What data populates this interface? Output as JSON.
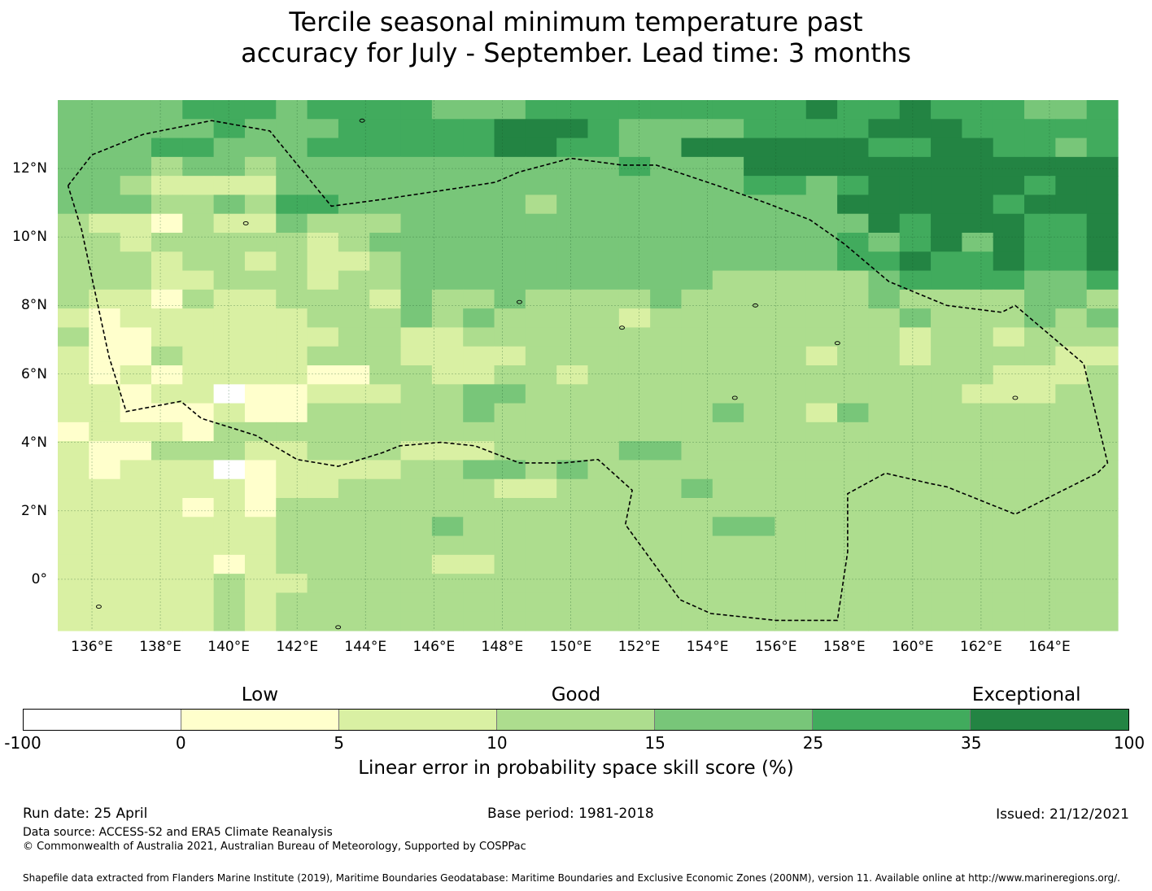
{
  "title_line1": "Tercile seasonal minimum temperature past",
  "title_line2": "accuracy for July - September. Lead time: 3 months",
  "map": {
    "lon_min": 135.0,
    "lon_max": 166.0,
    "lat_min": -1.5,
    "lat_max": 14.0,
    "cell_degrees": 0.833,
    "x_ticks": [
      "136°E",
      "138°E",
      "140°E",
      "142°E",
      "144°E",
      "146°E",
      "148°E",
      "150°E",
      "152°E",
      "154°E",
      "156°E",
      "158°E",
      "160°E",
      "162°E",
      "164°E"
    ],
    "x_tick_values": [
      136,
      138,
      140,
      142,
      144,
      146,
      148,
      150,
      152,
      154,
      156,
      158,
      160,
      162,
      164
    ],
    "y_ticks": [
      "12°N",
      "10°N",
      "8°N",
      "6°N",
      "4°N",
      "2°N",
      "0°"
    ],
    "y_tick_values": [
      12,
      10,
      8,
      6,
      4,
      2,
      0
    ],
    "grid": true,
    "grid_rows_north_to_south": [
      "4444555455554445555555556556555445",
      "4444454445555566654444555566655555",
      "4445544455555566554466666655665545",
      "4443443444444444445444666666666666",
      "4432222444444444444444554566666566",
      "4443343554444443444444444666665666",
      "3221322433344444444444444465666556",
      "3323333323444444444444444545646556",
      "3332332322344444444444444556556556",
      "3332233323344444444443333345555445",
      "3221322333243343333433333343333443",
      "2122222233343433332333333334333434",
      "3112222223322333333333333332332333",
      "2113222233322223333333332332333322",
      "2121222211332233233333333333332223",
      "2212201122233443333333333333322233",
      "2211121133333433333334332433333333",
      "1222133333333333333333333333333333",
      "2113332233322233334433333333333333",
      "2122201222233443433333333333333333",
      "2222221223333322333343333333333333",
      "2222121333333333333333333333333333",
      "2222222333334333333334433333333333",
      "2222222333333333333333333333333333",
      "2222212333332233333333333333333333",
      "2222232233333333333333333333333333",
      "2222232333333333333333333333333333",
      "2222232333333333333333333333333333"
    ],
    "island_markers": [
      {
        "lon": 136.2,
        "lat": -0.8
      },
      {
        "lon": 140.5,
        "lat": 10.4
      },
      {
        "lon": 143.2,
        "lat": -1.4
      },
      {
        "lon": 148.5,
        "lat": 8.1
      },
      {
        "lon": 151.5,
        "lat": 7.35
      },
      {
        "lon": 154.8,
        "lat": 5.3
      },
      {
        "lon": 157.8,
        "lat": 6.9
      },
      {
        "lon": 163.0,
        "lat": 5.3
      },
      {
        "lon": 143.9,
        "lat": 13.4
      },
      {
        "lon": 155.4,
        "lat": 8.0
      }
    ],
    "eez_boundary": [
      [
        135.3,
        11.5
      ],
      [
        136.0,
        12.4
      ],
      [
        137.5,
        13.0
      ],
      [
        139.5,
        13.4
      ],
      [
        141.2,
        13.1
      ],
      [
        143.0,
        10.9
      ],
      [
        144.5,
        11.1
      ],
      [
        146.5,
        11.4
      ],
      [
        147.8,
        11.6
      ],
      [
        148.5,
        11.9
      ],
      [
        150.0,
        12.3
      ],
      [
        151.5,
        12.1
      ],
      [
        152.5,
        12.1
      ],
      [
        154.3,
        11.5
      ],
      [
        155.7,
        11.0
      ],
      [
        157.0,
        10.5
      ],
      [
        158.0,
        9.8
      ],
      [
        159.3,
        8.7
      ],
      [
        161.0,
        8.0
      ],
      [
        162.6,
        7.8
      ],
      [
        163.0,
        8.0
      ],
      [
        165.0,
        6.3
      ],
      [
        165.7,
        3.4
      ],
      [
        165.4,
        3.1
      ],
      [
        163.0,
        1.9
      ],
      [
        161.0,
        2.7
      ],
      [
        160.5,
        2.8
      ],
      [
        159.2,
        3.1
      ],
      [
        158.1,
        2.5
      ],
      [
        158.1,
        0.8
      ],
      [
        157.8,
        -1.2
      ],
      [
        156.0,
        -1.2
      ],
      [
        154.1,
        -1.0
      ],
      [
        153.2,
        -0.6
      ],
      [
        151.6,
        1.6
      ],
      [
        151.8,
        2.6
      ],
      [
        150.8,
        3.5
      ],
      [
        149.8,
        3.4
      ],
      [
        148.5,
        3.4
      ],
      [
        147.2,
        3.9
      ],
      [
        146.2,
        4.0
      ],
      [
        145.0,
        3.9
      ],
      [
        144.5,
        3.7
      ],
      [
        143.2,
        3.3
      ],
      [
        142.0,
        3.5
      ],
      [
        140.8,
        4.2
      ],
      [
        139.2,
        4.7
      ],
      [
        138.6,
        5.2
      ],
      [
        137.0,
        4.9
      ],
      [
        136.5,
        6.5
      ],
      [
        135.7,
        10.2
      ],
      [
        135.3,
        11.5
      ]
    ]
  },
  "colorbar": {
    "categories": [
      {
        "label": "Low",
        "at_bin": 1.5
      },
      {
        "label": "Good",
        "at_bin": 3.5
      },
      {
        "label": "Exceptional",
        "at_bin": 6.35
      }
    ],
    "bins": [
      {
        "from": "-100",
        "to": "0",
        "color": "#ffffff"
      },
      {
        "from": "0",
        "to": "5",
        "color": "#ffffcc"
      },
      {
        "from": "5",
        "to": "10",
        "color": "#d9f0a3"
      },
      {
        "from": "10",
        "to": "15",
        "color": "#addd8e"
      },
      {
        "from": "15",
        "to": "25",
        "color": "#78c679"
      },
      {
        "from": "25",
        "to": "35",
        "color": "#41ab5d"
      },
      {
        "from": "35",
        "to": "100",
        "color": "#238443"
      }
    ],
    "tick_labels": [
      "-100",
      "0",
      "5",
      "10",
      "15",
      "25",
      "35",
      "100"
    ],
    "label": "Linear error in probability space skill score (%)"
  },
  "footer": {
    "run_date": "Run date: 25 April",
    "base_period": "Base period: 1981-2018",
    "issued": "Issued: 21/12/2021",
    "data_source": "Data source: ACCESS-S2 and ERA5 Climate Reanalysis",
    "copyright": "© Commonwealth of Australia 2021, Australian Bureau of Meteorology, Supported by COSPPac",
    "shapefile": "Shapefile data extracted from Flanders Marine Institute (2019), Maritime Boundaries Geodatabase: Maritime Boundaries and Exclusive Economic Zones (200NM), version 11. Available online at http://www.marineregions.org/."
  }
}
